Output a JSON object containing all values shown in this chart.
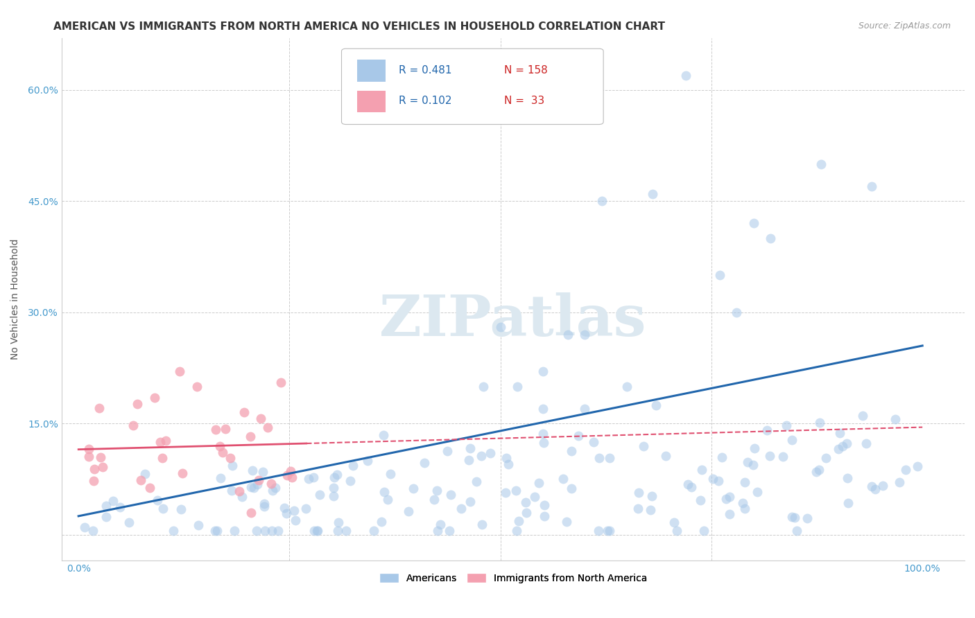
{
  "title": "AMERICAN VS IMMIGRANTS FROM NORTH AMERICA NO VEHICLES IN HOUSEHOLD CORRELATION CHART",
  "source": "Source: ZipAtlas.com",
  "ylabel": "No Vehicles in Household",
  "xlim": [
    -0.02,
    1.05
  ],
  "ylim": [
    -0.035,
    0.67
  ],
  "yticks": [
    0.0,
    0.15,
    0.3,
    0.45,
    0.6
  ],
  "ytick_labels": [
    "",
    "15.0%",
    "30.0%",
    "45.0%",
    "60.0%"
  ],
  "xticks": [
    0.0,
    0.25,
    0.5,
    0.75,
    1.0
  ],
  "xtick_labels": [
    "0.0%",
    "",
    "",
    "",
    "100.0%"
  ],
  "blue_color": "#a8c8e8",
  "pink_color": "#f4a0b0",
  "blue_line_color": "#2166ac",
  "pink_line_color": "#e05070",
  "watermark": "ZIPatlas",
  "watermark_color": "#dce8f0",
  "background_color": "#ffffff",
  "blue_N": 158,
  "pink_N": 33,
  "blue_R": 0.481,
  "pink_R": 0.102,
  "blue_line_y0": 0.025,
  "blue_line_y1": 0.255,
  "pink_line_y0": 0.115,
  "pink_line_y1": 0.145,
  "pink_line_solid_end": 0.27,
  "grid_color": "#cccccc",
  "tick_color": "#4499cc",
  "tick_fontsize": 10,
  "axis_label_fontsize": 10,
  "title_fontsize": 11,
  "source_fontsize": 9,
  "legend_r_color": "#2166ac",
  "legend_n_color": "#cc2222",
  "watermark_fontsize": 60,
  "scatter_size": 100,
  "blue_alpha": 0.55,
  "pink_alpha": 0.75
}
